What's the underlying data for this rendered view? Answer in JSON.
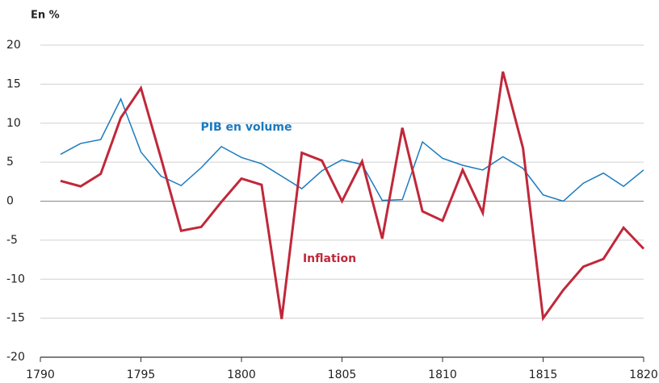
{
  "chart_data": {
    "type": "line",
    "y_unit_label": "En %",
    "x": [
      1791,
      1792,
      1793,
      1794,
      1795,
      1796,
      1797,
      1798,
      1799,
      1800,
      1801,
      1802,
      1803,
      1804,
      1805,
      1806,
      1807,
      1808,
      1809,
      1810,
      1811,
      1812,
      1813,
      1814,
      1815,
      1816,
      1817,
      1818,
      1819,
      1820
    ],
    "series": [
      {
        "name": "PIB en volume",
        "color": "#1a7abf",
        "width": 1.5,
        "values": [
          6.0,
          7.4,
          7.9,
          13.1,
          6.3,
          3.2,
          2.0,
          4.3,
          7.0,
          5.6,
          4.8,
          3.2,
          1.6,
          3.9,
          5.3,
          4.7,
          0.1,
          0.2,
          7.6,
          5.5,
          4.6,
          4.0,
          5.7,
          4.2,
          0.8,
          0.0,
          2.3,
          3.6,
          1.9,
          4.0
        ]
      },
      {
        "name": "Inflation",
        "color": "#c0283a",
        "width": 3,
        "values": [
          2.6,
          1.9,
          3.5,
          10.7,
          14.5,
          5.5,
          -3.8,
          -3.3,
          -0.1,
          2.9,
          2.1,
          -15.1,
          6.2,
          5.2,
          0.0,
          5.1,
          -4.8,
          9.4,
          -1.3,
          -2.5,
          4.0,
          -1.5,
          16.6,
          6.8,
          -15.0,
          -11.4,
          -8.4,
          -7.4,
          -3.4,
          -6.1
        ]
      }
    ],
    "xlim": [
      1790,
      1820
    ],
    "xticks": [
      1790,
      1795,
      1800,
      1805,
      1810,
      1815,
      1820
    ],
    "ylim": [
      -20,
      20
    ],
    "yticks": [
      -20,
      -15,
      -10,
      -5,
      0,
      5,
      10,
      15,
      20
    ],
    "grid": true
  }
}
